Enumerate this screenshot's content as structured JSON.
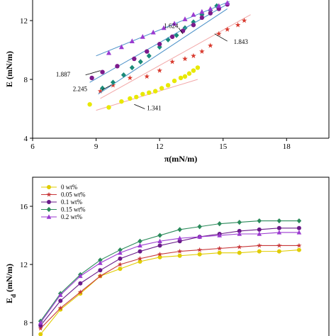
{
  "chart_data": [
    {
      "type": "scatter",
      "title": "",
      "xlabel": "π(mN/m)",
      "ylabel": "E (mN/m)",
      "xlim": [
        6,
        20
      ],
      "ylim": [
        4,
        13.4
      ],
      "xticks": [
        "6",
        "9",
        "12",
        "15",
        "18"
      ],
      "yticks": [
        "4",
        "8",
        "12"
      ],
      "series": [
        {
          "marker": "circle",
          "color": "#e8e800",
          "fit_color": "#f2a7a7",
          "points": [
            [
              8.7,
              6.3
            ],
            [
              9.6,
              6.1
            ],
            [
              10.2,
              6.5
            ],
            [
              10.6,
              6.7
            ],
            [
              10.9,
              6.8
            ],
            [
              11.2,
              7.0
            ],
            [
              11.5,
              7.1
            ],
            [
              11.8,
              7.2
            ],
            [
              12.1,
              7.4
            ],
            [
              12.4,
              7.6
            ],
            [
              12.7,
              7.9
            ],
            [
              13.0,
              8.1
            ],
            [
              13.2,
              8.2
            ],
            [
              13.4,
              8.4
            ],
            [
              13.6,
              8.6
            ],
            [
              13.8,
              8.8
            ]
          ],
          "fit": [
            [
              9.0,
              5.9
            ],
            [
              13.8,
              8.0
            ]
          ]
        },
        {
          "marker": "star",
          "color": "#d83a2e",
          "fit_color": "#f2a7a7",
          "points": [
            [
              9.2,
              7.2
            ],
            [
              9.8,
              7.6
            ],
            [
              10.6,
              8.1
            ],
            [
              11.4,
              8.2
            ],
            [
              12.0,
              8.6
            ],
            [
              12.6,
              9.2
            ],
            [
              13.2,
              9.4
            ],
            [
              13.6,
              9.6
            ],
            [
              14.0,
              9.9
            ],
            [
              14.4,
              10.3
            ],
            [
              14.8,
              11.1
            ],
            [
              15.2,
              11.4
            ],
            [
              15.7,
              11.7
            ],
            [
              16.0,
              12.0
            ]
          ],
          "fit": [
            [
              9.2,
              6.7
            ],
            [
              16.3,
              12.4
            ]
          ]
        },
        {
          "marker": "diamond",
          "color": "#1a8a78",
          "fit_color": "#4a90c8",
          "points": [
            [
              9.3,
              7.4
            ],
            [
              9.8,
              7.8
            ],
            [
              10.3,
              8.3
            ],
            [
              10.7,
              8.8
            ],
            [
              11.1,
              9.2
            ],
            [
              11.5,
              9.6
            ],
            [
              12.0,
              10.2
            ],
            [
              12.4,
              10.7
            ],
            [
              12.8,
              11.0
            ],
            [
              13.2,
              11.5
            ],
            [
              13.6,
              11.9
            ],
            [
              14.0,
              12.4
            ],
            [
              14.4,
              12.7
            ],
            [
              14.7,
              13.0
            ]
          ],
          "fit": [
            [
              9.1,
              7.0
            ],
            [
              15.2,
              12.8
            ]
          ]
        },
        {
          "marker": "circle",
          "color": "#7d1a8c",
          "fit_color": "#4a90c8",
          "points": [
            [
              8.8,
              8.1
            ],
            [
              9.3,
              8.5
            ],
            [
              10.0,
              8.9
            ],
            [
              10.8,
              9.4
            ],
            [
              11.4,
              9.9
            ],
            [
              12.0,
              10.4
            ],
            [
              12.6,
              10.9
            ],
            [
              13.1,
              11.3
            ],
            [
              13.6,
              11.7
            ],
            [
              14.0,
              12.2
            ],
            [
              14.4,
              12.5
            ],
            [
              14.8,
              12.8
            ],
            [
              15.2,
              13.1
            ]
          ],
          "fit": [
            [
              8.7,
              7.8
            ],
            [
              15.3,
              13.2
            ]
          ]
        },
        {
          "marker": "triangle",
          "color": "#9b3ad0",
          "fit_color": "#4a90c8",
          "points": [
            [
              9.6,
              9.8
            ],
            [
              10.2,
              10.2
            ],
            [
              10.7,
              10.6
            ],
            [
              11.2,
              10.9
            ],
            [
              11.7,
              11.2
            ],
            [
              12.2,
              11.5
            ],
            [
              12.7,
              11.8
            ],
            [
              13.2,
              12.1
            ],
            [
              13.6,
              12.4
            ],
            [
              14.0,
              12.6
            ],
            [
              14.4,
              12.8
            ],
            [
              14.8,
              13.0
            ],
            [
              15.2,
              13.2
            ]
          ],
          "fit": [
            [
              9.0,
              9.6
            ],
            [
              15.3,
              13.3
            ]
          ]
        }
      ],
      "annotations": [
        {
          "text": "1.624",
          "x": 12.2,
          "y": 11.5
        },
        {
          "text": "1.843",
          "x": 15.5,
          "y": 10.4
        },
        {
          "text": "1.887",
          "x": 7.1,
          "y": 8.2
        },
        {
          "text": "2.245",
          "x": 7.9,
          "y": 7.2
        },
        {
          "text": "1.341",
          "x": 11.4,
          "y": 5.9
        }
      ]
    },
    {
      "type": "line",
      "title": "",
      "xlabel": "",
      "ylabel": "E_d (mN/m)",
      "ylabel_main": "E",
      "ylabel_sub": "d",
      "ylabel_unit": " (mN/m)",
      "ylim": [
        7.2,
        18
      ],
      "yticks": [
        "8",
        "12",
        "16"
      ],
      "x": [
        1,
        2,
        3,
        4,
        5,
        6,
        7,
        8,
        9,
        10,
        11,
        12,
        13,
        14
      ],
      "legend_position": "top-left",
      "series": [
        {
          "name": "0 wt%",
          "color": "#e0cc00",
          "marker": "circle",
          "values": [
            7.2,
            8.9,
            10.0,
            11.2,
            11.7,
            12.2,
            12.5,
            12.6,
            12.7,
            12.8,
            12.8,
            12.9,
            12.9,
            13.0
          ]
        },
        {
          "name": "0.05 wt%",
          "color": "#c8383a",
          "marker": "star",
          "values": [
            7.6,
            9.0,
            10.1,
            11.2,
            12.0,
            12.4,
            12.7,
            12.9,
            13.0,
            13.1,
            13.2,
            13.3,
            13.3,
            13.3
          ]
        },
        {
          "name": "0.1 wt%",
          "color": "#6a1a8a",
          "marker": "circle",
          "values": [
            7.8,
            9.5,
            10.7,
            11.6,
            12.4,
            12.9,
            13.3,
            13.6,
            13.9,
            14.1,
            14.3,
            14.4,
            14.5,
            14.5
          ]
        },
        {
          "name": "0.15 wt%",
          "color": "#2a8a5a",
          "marker": "diamond",
          "values": [
            8.1,
            10.0,
            11.3,
            12.3,
            13.0,
            13.6,
            14.0,
            14.4,
            14.6,
            14.8,
            14.9,
            15.0,
            15.0,
            15.0
          ]
        },
        {
          "name": "0.2 wt%",
          "color": "#9b3ad0",
          "marker": "triangle",
          "values": [
            8.0,
            9.9,
            11.2,
            12.1,
            12.8,
            13.3,
            13.6,
            13.8,
            13.9,
            14.0,
            14.1,
            14.1,
            14.2,
            14.2
          ]
        }
      ]
    }
  ]
}
